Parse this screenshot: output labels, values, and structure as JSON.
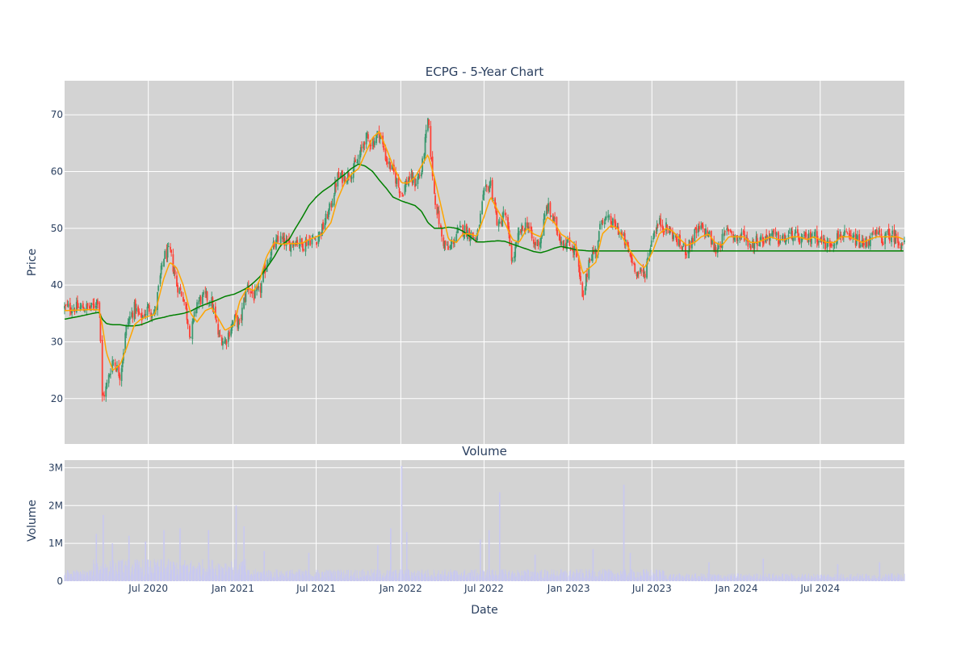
{
  "chart_data": [
    {
      "type": "candlestick",
      "title": "ECPG - 5-Year Chart",
      "xlabel": "",
      "ylabel": "Price",
      "ylim": [
        12,
        76
      ],
      "yticks": [
        20,
        30,
        40,
        50,
        60,
        70
      ],
      "xlim": [
        "2020-01-01",
        "2024-12-31"
      ],
      "xticks": [
        {
          "date": "2020-07-01",
          "label": "Jul 2020"
        },
        {
          "date": "2021-01-01",
          "label": "Jan 2021"
        },
        {
          "date": "2021-07-01",
          "label": "Jul 2021"
        },
        {
          "date": "2022-01-01",
          "label": "Jan 2022"
        },
        {
          "date": "2022-07-01",
          "label": "Jul 2022"
        },
        {
          "date": "2023-01-01",
          "label": "Jan 2023"
        },
        {
          "date": "2023-07-01",
          "label": "Jul 2023"
        },
        {
          "date": "2024-01-01",
          "label": "Jan 2024"
        },
        {
          "date": "2024-07-01",
          "label": "Jul 2024"
        }
      ],
      "grid": true,
      "legend": "none",
      "price_series": {
        "dates": [
          "2020-01-02",
          "2020-02-03",
          "2020-03-02",
          "2020-03-16",
          "2020-03-23",
          "2020-04-01",
          "2020-04-15",
          "2020-05-01",
          "2020-05-15",
          "2020-06-01",
          "2020-06-15",
          "2020-07-01",
          "2020-07-15",
          "2020-08-03",
          "2020-08-17",
          "2020-09-01",
          "2020-09-15",
          "2020-10-01",
          "2020-10-15",
          "2020-11-02",
          "2020-11-16",
          "2020-12-01",
          "2020-12-15",
          "2021-01-04",
          "2021-01-15",
          "2021-02-01",
          "2021-02-16",
          "2021-03-01",
          "2021-03-15",
          "2021-04-01",
          "2021-04-15",
          "2021-05-03",
          "2021-05-17",
          "2021-06-01",
          "2021-06-15",
          "2021-07-01",
          "2021-07-15",
          "2021-08-02",
          "2021-08-16",
          "2021-09-01",
          "2021-09-15",
          "2021-10-01",
          "2021-10-15",
          "2021-11-01",
          "2021-11-15",
          "2021-12-01",
          "2021-12-15",
          "2022-01-03",
          "2022-01-18",
          "2022-02-01",
          "2022-02-15",
          "2022-03-01",
          "2022-03-15",
          "2022-04-01",
          "2022-04-15",
          "2022-05-02",
          "2022-05-16",
          "2022-06-01",
          "2022-06-15",
          "2022-07-01",
          "2022-07-15",
          "2022-08-01",
          "2022-08-15",
          "2022-09-01",
          "2022-09-15",
          "2022-10-03",
          "2022-10-17",
          "2022-11-01",
          "2022-11-15",
          "2022-12-01",
          "2022-12-15",
          "2023-01-03",
          "2023-01-17",
          "2023-02-01",
          "2023-02-15",
          "2023-03-01",
          "2023-03-15",
          "2023-04-03",
          "2023-04-17",
          "2023-05-01",
          "2023-05-15",
          "2023-06-01",
          "2023-06-15",
          "2023-07-03",
          "2023-07-17",
          "2023-08-01",
          "2023-08-15",
          "2023-09-01",
          "2023-09-15",
          "2023-10-02",
          "2023-10-16",
          "2023-11-01",
          "2023-11-15",
          "2023-12-01",
          "2023-12-15",
          "2024-01-02",
          "2024-01-16",
          "2024-02-01",
          "2024-02-15",
          "2024-03-01",
          "2024-03-15",
          "2024-04-01",
          "2024-04-15",
          "2024-05-01",
          "2024-05-15",
          "2024-06-03",
          "2024-06-17",
          "2024-07-01",
          "2024-07-15",
          "2024-08-01",
          "2024-08-15",
          "2024-09-03",
          "2024-09-16",
          "2024-10-01",
          "2024-10-15",
          "2024-11-01",
          "2024-11-15",
          "2024-12-02",
          "2024-12-16",
          "2024-12-31"
        ],
        "close": [
          36,
          36,
          36,
          38,
          20,
          22,
          27,
          24,
          33,
          36,
          34,
          36,
          35,
          45,
          46,
          40,
          38,
          31,
          37,
          38,
          37,
          31,
          30,
          34,
          33,
          40,
          38,
          39,
          44,
          47,
          48,
          47,
          48,
          47,
          48,
          48,
          50,
          54,
          59,
          59,
          60,
          62,
          66,
          65,
          67,
          62,
          60,
          56,
          59,
          58,
          60,
          69,
          56,
          48,
          46,
          49,
          50,
          49,
          48,
          56,
          58,
          50,
          53,
          44,
          49,
          51,
          47,
          48,
          54,
          51,
          48,
          47,
          46,
          37,
          45,
          46,
          52,
          51,
          50,
          48,
          45,
          42,
          42,
          49,
          51,
          50,
          49,
          47,
          46,
          49,
          50,
          49,
          46,
          48,
          50,
          48,
          49,
          47,
          48,
          48,
          49,
          48,
          48,
          49,
          48,
          48,
          49,
          48,
          47,
          48,
          49,
          48,
          48,
          47,
          48,
          49,
          48,
          49,
          48,
          47
        ],
        "ma_short": [
          35.5,
          35.6,
          35.7,
          35.6,
          33,
          28,
          25,
          26,
          29,
          33,
          34,
          34.5,
          34.8,
          41,
          44,
          43,
          40,
          35,
          33.5,
          35.5,
          36,
          34,
          32,
          33,
          37,
          39.5,
          39,
          41,
          45,
          47.5,
          47.2,
          47.3,
          47.3,
          47.4,
          48,
          48.5,
          49,
          51,
          55,
          58,
          59.5,
          60.5,
          63,
          66,
          67,
          64,
          61,
          58,
          58,
          59,
          61,
          63,
          59,
          53,
          48,
          47.5,
          49,
          49,
          48.6,
          52,
          55.5,
          53,
          51,
          48,
          47.5,
          50,
          49,
          48.5,
          52,
          51,
          49,
          48,
          47,
          42,
          43,
          44,
          49,
          50.5,
          50,
          48,
          46,
          44,
          43,
          46,
          49,
          50,
          49.5,
          48,
          47,
          47.5,
          48.5,
          49,
          47.5,
          47,
          48.5,
          48.5,
          48.5,
          47.5,
          47.5,
          48,
          48.5,
          48,
          48,
          48.5,
          48.5,
          48,
          48.5,
          48,
          47.5,
          47.5,
          48.5,
          48.5,
          48,
          47.5,
          48,
          48.5,
          48.5,
          48.5,
          48.5,
          48
        ],
        "ma_long": [
          34,
          34.5,
          35,
          35.2,
          34,
          33.2,
          33,
          33,
          32.8,
          32.8,
          33,
          33.5,
          34,
          34.3,
          34.6,
          34.8,
          35,
          35.4,
          36,
          36.6,
          37,
          37.5,
          38,
          38.4,
          38.8,
          39.5,
          40.5,
          41.5,
          43,
          45,
          47,
          48,
          50,
          52,
          54,
          55.5,
          56.5,
          57.5,
          58.5,
          59.5,
          60.5,
          61.3,
          61,
          60,
          58.5,
          57,
          55.5,
          54.8,
          54.4,
          54,
          53,
          51,
          50,
          50,
          50.2,
          50,
          49.5,
          48.5,
          47.6,
          47.6,
          47.7,
          47.8,
          47.7,
          47.2,
          46.8,
          46.3,
          45.9,
          45.7,
          46,
          46.5,
          46.8,
          46.5,
          46.2,
          46.1,
          46,
          46,
          46,
          46,
          46,
          46,
          46,
          46,
          46,
          46,
          46,
          46,
          46,
          46,
          46,
          46,
          46,
          46,
          46,
          46,
          46,
          46,
          46,
          46,
          46,
          46,
          46,
          46,
          46,
          46,
          46,
          46,
          46,
          46,
          46,
          46,
          46,
          46,
          46,
          46,
          46,
          46,
          46,
          46,
          46,
          46
        ]
      },
      "candle_colors": {
        "up": "#3d9970",
        "down": "#ff4136"
      },
      "line_colors": {
        "ma_short": "#ffa500",
        "ma_long": "#008000"
      },
      "plot_background": "#d3d3d3"
    },
    {
      "type": "bar",
      "title": "Volume",
      "xlabel": "Date",
      "ylabel": "Volume",
      "ylim": [
        0,
        3200000
      ],
      "yticks": [
        {
          "value": 0,
          "label": "0"
        },
        {
          "value": 1000000,
          "label": "1M"
        },
        {
          "value": 2000000,
          "label": "2M"
        },
        {
          "value": 3000000,
          "label": "3M"
        }
      ],
      "bar_color": "#c8c8f0",
      "spikes": [
        {
          "date": "2020-03-10",
          "value": 1250000
        },
        {
          "date": "2020-03-25",
          "value": 1750000
        },
        {
          "date": "2020-04-14",
          "value": 1000000
        },
        {
          "date": "2020-05-20",
          "value": 1200000
        },
        {
          "date": "2020-06-25",
          "value": 1050000
        },
        {
          "date": "2020-08-04",
          "value": 1350000
        },
        {
          "date": "2020-09-08",
          "value": 1400000
        },
        {
          "date": "2020-11-09",
          "value": 1350000
        },
        {
          "date": "2021-01-08",
          "value": 2000000
        },
        {
          "date": "2021-01-25",
          "value": 1450000
        },
        {
          "date": "2021-03-10",
          "value": 800000
        },
        {
          "date": "2021-06-15",
          "value": 750000
        },
        {
          "date": "2021-11-12",
          "value": 950000
        },
        {
          "date": "2021-12-10",
          "value": 1400000
        },
        {
          "date": "2022-01-03",
          "value": 3050000
        },
        {
          "date": "2022-01-14",
          "value": 1300000
        },
        {
          "date": "2022-06-23",
          "value": 1100000
        },
        {
          "date": "2022-07-12",
          "value": 1350000
        },
        {
          "date": "2022-08-04",
          "value": 2350000
        },
        {
          "date": "2022-10-20",
          "value": 700000
        },
        {
          "date": "2023-02-23",
          "value": 850000
        },
        {
          "date": "2023-05-01",
          "value": 2550000
        },
        {
          "date": "2023-05-15",
          "value": 750000
        },
        {
          "date": "2023-11-02",
          "value": 500000
        },
        {
          "date": "2024-02-28",
          "value": 600000
        },
        {
          "date": "2024-08-08",
          "value": 450000
        },
        {
          "date": "2024-11-07",
          "value": 500000
        }
      ],
      "baseline_levels": [
        {
          "from": "2020-01-01",
          "to": "2020-03-01",
          "value": 220000
        },
        {
          "from": "2020-03-01",
          "to": "2021-02-01",
          "value": 420000
        },
        {
          "from": "2021-02-01",
          "to": "2022-02-01",
          "value": 230000
        },
        {
          "from": "2022-02-01",
          "to": "2023-08-01",
          "value": 230000
        },
        {
          "from": "2023-08-01",
          "to": "2024-12-31",
          "value": 150000
        }
      ],
      "plot_background": "#d3d3d3"
    }
  ]
}
